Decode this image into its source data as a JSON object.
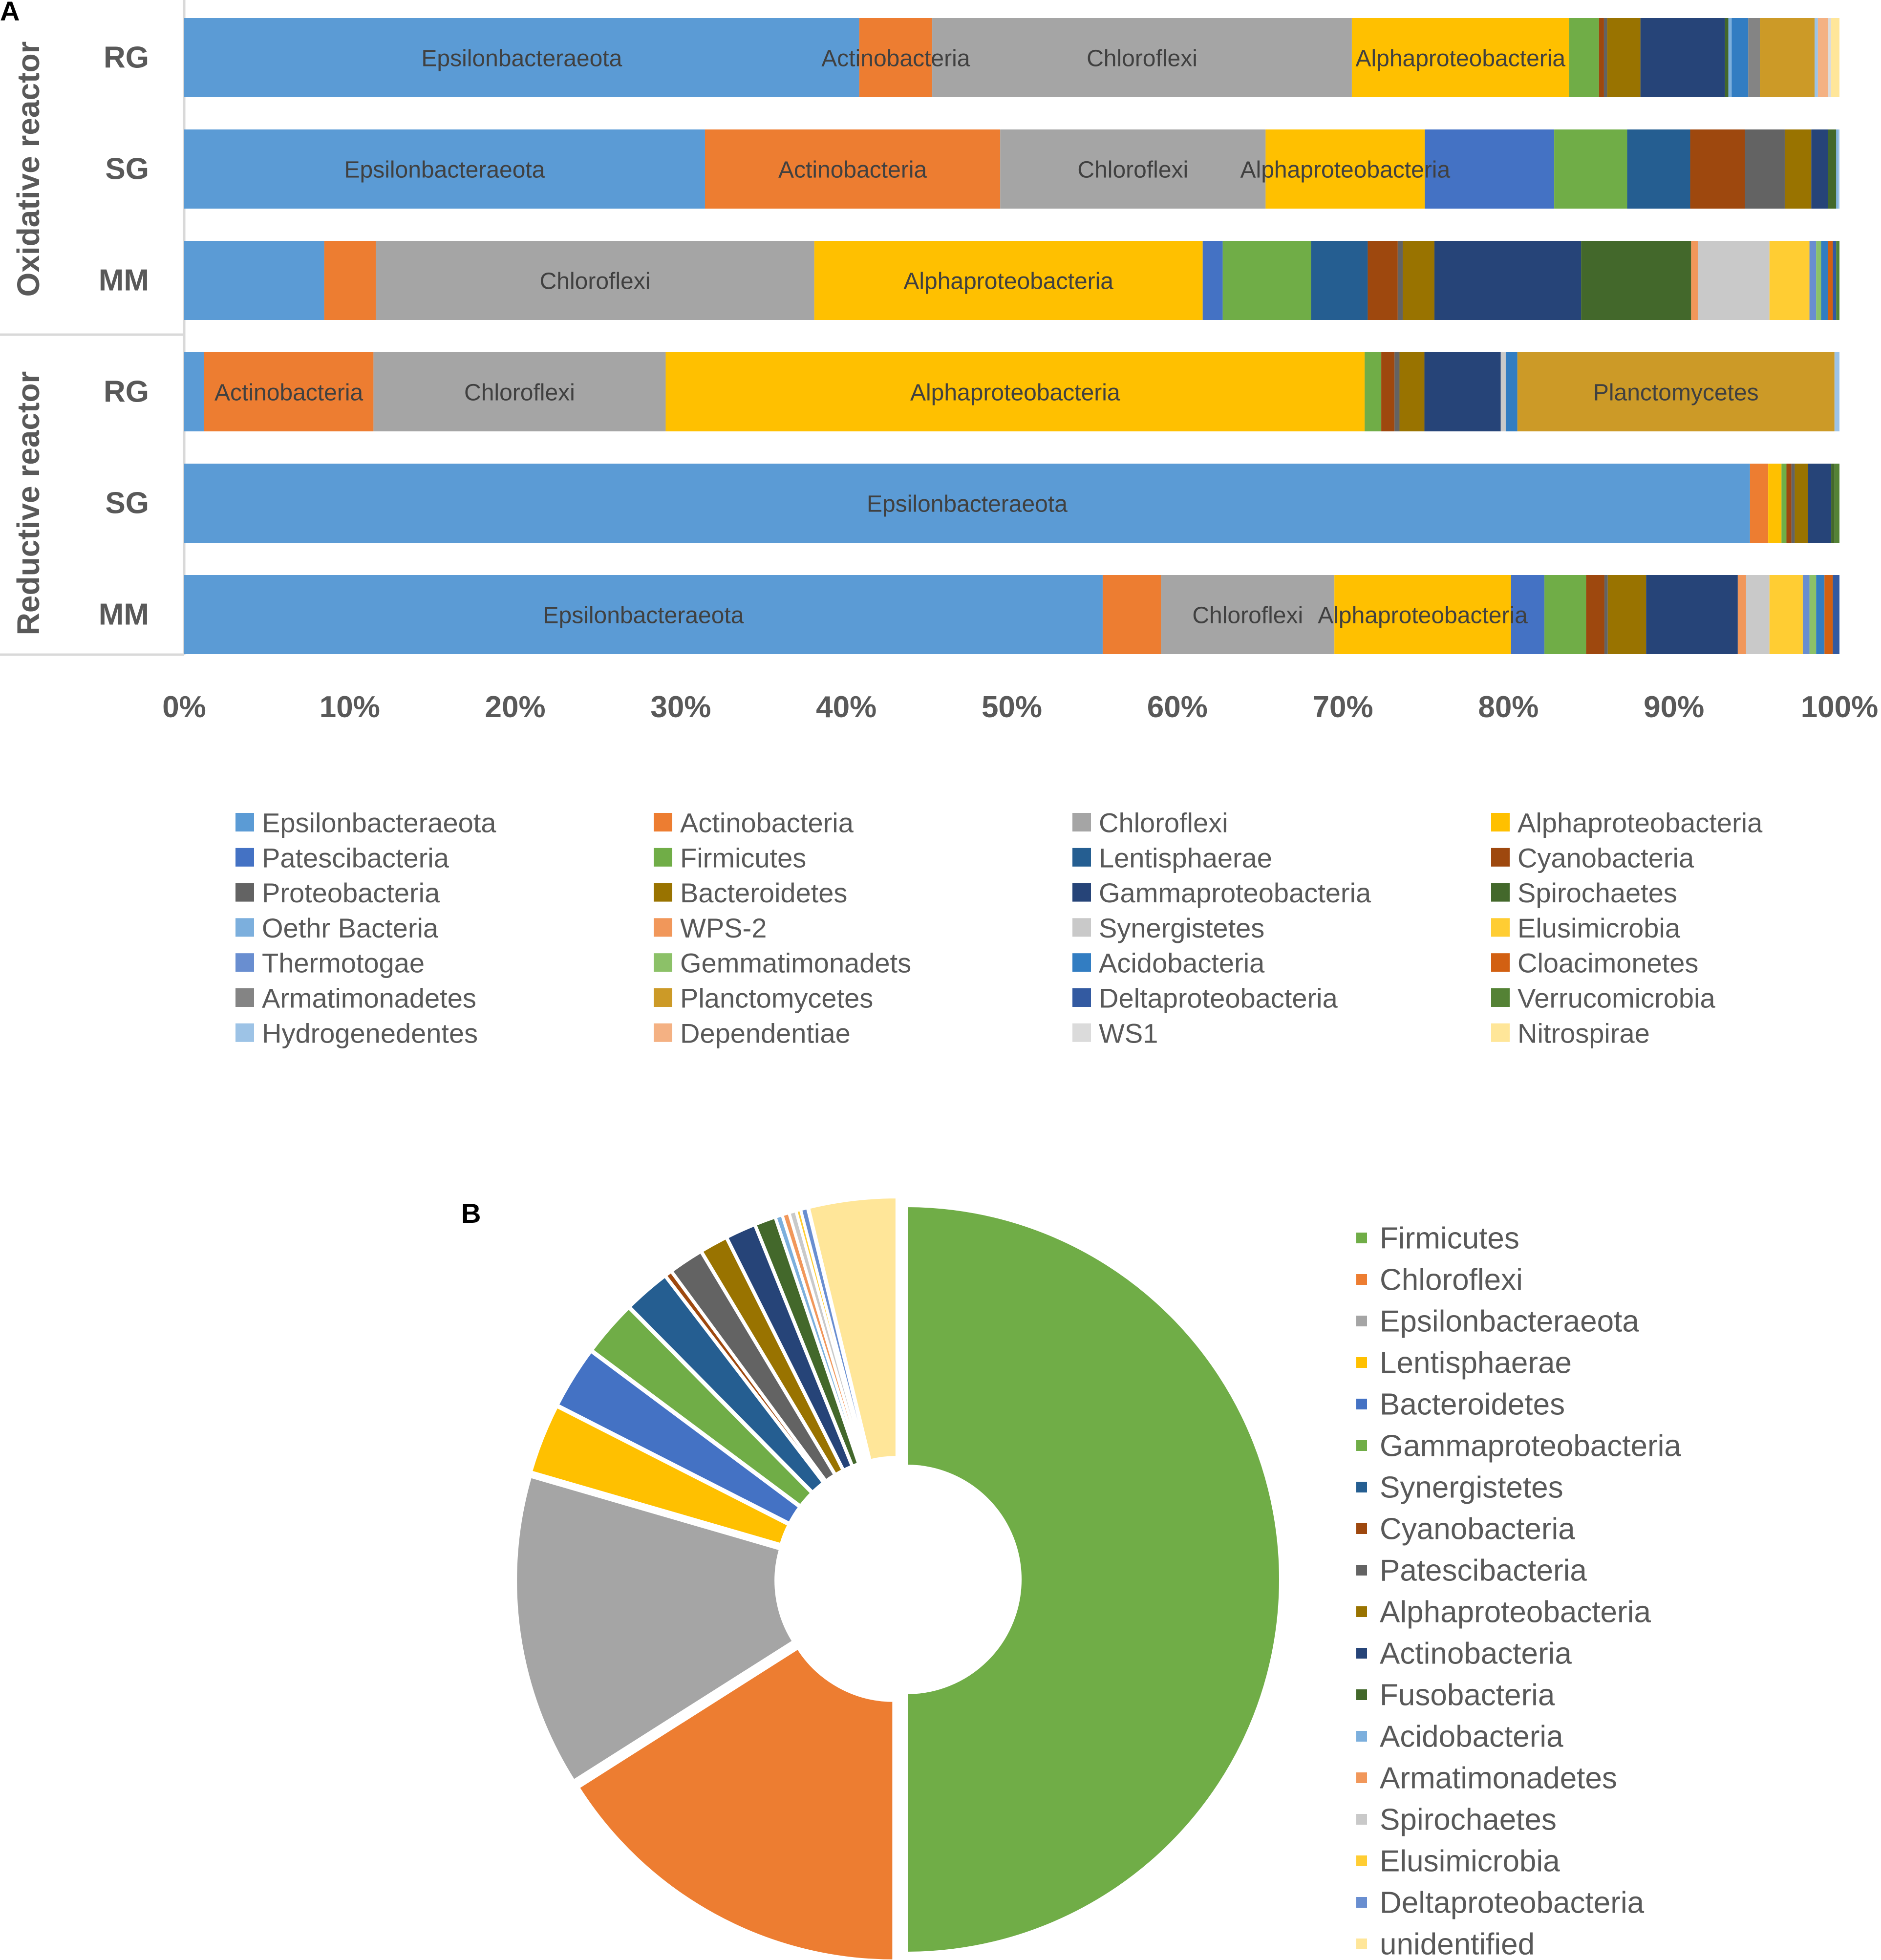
{
  "panel_labels": {
    "a": "A",
    "b": "B"
  },
  "chart_data": [
    {
      "type": "bar",
      "stacked": true,
      "orientation": "horizontal",
      "normalized": true,
      "panel": "A",
      "categories": [
        "RG",
        "SG",
        "MM",
        "RG",
        "SG",
        "MM"
      ],
      "groups": [
        {
          "label": "Oxidative reactor",
          "categories": [
            "RG",
            "SG",
            "MM"
          ]
        },
        {
          "label": "Reductive reactor",
          "categories": [
            "RG",
            "SG",
            "MM"
          ]
        }
      ],
      "xlim": [
        0,
        100
      ],
      "ticks": [
        "0%",
        "10%",
        "20%",
        "30%",
        "40%",
        "50%",
        "60%",
        "70%",
        "80%",
        "90%",
        "100%"
      ],
      "legend_position": "bottom",
      "legend_columns": 4,
      "series": [
        {
          "name": "Epsilonbacteraeota",
          "color": "#5B9BD5",
          "values": [
            40.7,
            31.4,
            8.4,
            1.2,
            94.5,
            55.1
          ]
        },
        {
          "name": "Actinobacteria",
          "color": "#ED7D31",
          "values": [
            4.4,
            17.8,
            3.1,
            10.2,
            1.1,
            3.5
          ]
        },
        {
          "name": "Chloroflexi",
          "color": "#A5A5A5",
          "values": [
            25.3,
            16.0,
            26.3,
            17.6,
            0.0,
            10.4
          ]
        },
        {
          "name": "Alphaproteobacteria",
          "color": "#FFC000",
          "values": [
            13.1,
            9.6,
            23.3,
            42.1,
            0.8,
            10.6
          ]
        },
        {
          "name": "Patescibacteria",
          "color": "#4472C4",
          "values": [
            0.0,
            7.8,
            1.2,
            0.0,
            0.0,
            2.0
          ]
        },
        {
          "name": "Firmicutes",
          "color": "#70AD47",
          "values": [
            1.8,
            4.4,
            5.3,
            1.0,
            0.3,
            2.5
          ]
        },
        {
          "name": "Lentisphaerae",
          "color": "#255E91",
          "values": [
            0.0,
            3.8,
            3.4,
            0.0,
            0.0,
            0.0
          ]
        },
        {
          "name": "Cyanobacteria",
          "color": "#9E480E",
          "values": [
            0.3,
            3.3,
            1.8,
            0.8,
            0.3,
            1.1
          ]
        },
        {
          "name": "Proteobacteria",
          "color": "#636363",
          "values": [
            0.2,
            2.4,
            0.3,
            0.3,
            0.2,
            0.2
          ]
        },
        {
          "name": "Bacteroidetes",
          "color": "#997300",
          "values": [
            2.0,
            1.6,
            1.9,
            1.5,
            0.8,
            2.3
          ]
        },
        {
          "name": "Gammaproteobacteria",
          "color": "#264478",
          "values": [
            5.1,
            1.0,
            8.8,
            4.6,
            1.4,
            5.5
          ]
        },
        {
          "name": "Spirochaetes",
          "color": "#43682B",
          "values": [
            0.2,
            0.5,
            6.6,
            0.0,
            0.2,
            0.0
          ]
        },
        {
          "name": "Oethr Bacteria",
          "color": "#7CAFDD",
          "values": [
            0.2,
            0.1,
            0.0,
            0.0,
            0.0,
            0.0
          ]
        },
        {
          "name": "WPS-2",
          "color": "#F1975A",
          "values": [
            0.0,
            0.0,
            0.4,
            0.0,
            0.0,
            0.5
          ]
        },
        {
          "name": "Synergistetes",
          "color": "#C9C9C9",
          "values": [
            0.0,
            0.0,
            4.3,
            0.3,
            0.0,
            1.4
          ]
        },
        {
          "name": "Elusimicrobia",
          "color": "#FFCD33",
          "values": [
            0.0,
            0.0,
            2.4,
            0.0,
            0.0,
            2.0
          ]
        },
        {
          "name": "Thermotogae",
          "color": "#698ED0",
          "values": [
            0.0,
            0.0,
            0.4,
            0.0,
            0.0,
            0.4
          ]
        },
        {
          "name": "Gemmatimonadets",
          "color": "#8CC168",
          "values": [
            0.0,
            0.0,
            0.3,
            0.0,
            0.0,
            0.4
          ]
        },
        {
          "name": "Acidobacteria",
          "color": "#327DC2",
          "values": [
            1.0,
            0.0,
            0.4,
            0.7,
            0.0,
            0.5
          ]
        },
        {
          "name": "Cloacimonetes",
          "color": "#D26012",
          "values": [
            0.0,
            0.0,
            0.3,
            0.0,
            0.0,
            0.5
          ]
        },
        {
          "name": "Armatimonadetes",
          "color": "#848484",
          "values": [
            0.7,
            0.0,
            0.0,
            0.0,
            0.0,
            0.0
          ]
        },
        {
          "name": "Planctomycetes",
          "color": "#CC9A27",
          "values": [
            3.3,
            0.0,
            0.0,
            19.1,
            0.0,
            0.0
          ]
        },
        {
          "name": "Deltaproteobacteria",
          "color": "#335AA1",
          "values": [
            0.0,
            0.0,
            0.2,
            0.0,
            0.0,
            0.4
          ]
        },
        {
          "name": "Verrucomicrobia",
          "color": "#548235",
          "values": [
            0.0,
            0.0,
            0.2,
            0.0,
            0.3,
            0.0
          ]
        },
        {
          "name": "Hydrogenedentes",
          "color": "#9DC3E6",
          "values": [
            0.2,
            0.1,
            0.0,
            0.3,
            0.0,
            0.0
          ]
        },
        {
          "name": "Dependentiae",
          "color": "#F4B183",
          "values": [
            0.6,
            0.0,
            0.0,
            0.0,
            0.0,
            0.0
          ]
        },
        {
          "name": "WS1",
          "color": "#DBDBDB",
          "values": [
            0.2,
            0.0,
            0.0,
            0.0,
            0.0,
            0.0
          ]
        },
        {
          "name": "Nitrospirae",
          "color": "#FFE699",
          "values": [
            0.5,
            0.0,
            0.0,
            0.0,
            0.0,
            0.0
          ]
        }
      ],
      "segment_labels": [
        {
          "bar": 0,
          "series": "Epsilonbacteraeota",
          "text": "Epsilonbacteraeota"
        },
        {
          "bar": 0,
          "series": "Actinobacteria",
          "text": "Actinobacteria"
        },
        {
          "bar": 0,
          "series": "Chloroflexi",
          "text": "Chloroflexi"
        },
        {
          "bar": 0,
          "series": "Alphaproteobacteria",
          "text": "Alphaproteobacteria"
        },
        {
          "bar": 1,
          "series": "Epsilonbacteraeota",
          "text": "Epsilonbacteraeota"
        },
        {
          "bar": 1,
          "series": "Actinobacteria",
          "text": "Actinobacteria"
        },
        {
          "bar": 1,
          "series": "Chloroflexi",
          "text": "Chloroflexi"
        },
        {
          "bar": 1,
          "series": "Alphaproteobacteria",
          "text": "Alphaproteobacteria"
        },
        {
          "bar": 2,
          "series": "Chloroflexi",
          "text": "Chloroflexi"
        },
        {
          "bar": 2,
          "series": "Alphaproteobacteria",
          "text": "Alphaproteobacteria"
        },
        {
          "bar": 3,
          "series": "Actinobacteria",
          "text": "Actinobacteria"
        },
        {
          "bar": 3,
          "series": "Chloroflexi",
          "text": "Chloroflexi"
        },
        {
          "bar": 3,
          "series": "Alphaproteobacteria",
          "text": "Alphaproteobacteria"
        },
        {
          "bar": 3,
          "series": "Planctomycetes",
          "text": "Planctomycetes"
        },
        {
          "bar": 4,
          "series": "Epsilonbacteraeota",
          "text": "Epsilonbacteraeota"
        },
        {
          "bar": 5,
          "series": "Epsilonbacteraeota",
          "text": "Epsilonbacteraeota"
        },
        {
          "bar": 5,
          "series": "Chloroflexi",
          "text": "Chloroflexi"
        },
        {
          "bar": 5,
          "series": "Alphaproteobacteria",
          "text": "Alphaproteobacteria"
        }
      ]
    },
    {
      "type": "pie",
      "donut": true,
      "panel": "B",
      "legend_position": "right",
      "slices": [
        {
          "name": "Firmicutes",
          "value": 50.0,
          "color": "#70AD47"
        },
        {
          "name": "Chloroflexi",
          "value": 16.0,
          "color": "#ED7D31"
        },
        {
          "name": "Epsilonbacteraeota",
          "value": 13.5,
          "color": "#A5A5A5"
        },
        {
          "name": "Lentisphaerae",
          "value": 3.0,
          "color": "#FFC000"
        },
        {
          "name": "Bacteroidetes",
          "value": 2.7,
          "color": "#4472C4"
        },
        {
          "name": "Gammaproteobacteria",
          "value": 2.4,
          "color": "#70AD47"
        },
        {
          "name": "Synergistetes",
          "value": 2.0,
          "color": "#255E91"
        },
        {
          "name": "Cyanobacteria",
          "value": 0.3,
          "color": "#9E480E"
        },
        {
          "name": "Patescibacteria",
          "value": 1.5,
          "color": "#636363"
        },
        {
          "name": "Alphaproteobacteria",
          "value": 1.2,
          "color": "#997300"
        },
        {
          "name": "Actinobacteria",
          "value": 1.3,
          "color": "#264478"
        },
        {
          "name": "Fusobacteria",
          "value": 0.9,
          "color": "#43682B"
        },
        {
          "name": "Acidobacteria",
          "value": 0.3,
          "color": "#7CAFDD"
        },
        {
          "name": "Armatimonadetes",
          "value": 0.3,
          "color": "#F1975A"
        },
        {
          "name": "Spirochaetes",
          "value": 0.3,
          "color": "#C9C9C9"
        },
        {
          "name": "Elusimicrobia",
          "value": 0.2,
          "color": "#FFCD33"
        },
        {
          "name": "Deltaproteobacteria",
          "value": 0.3,
          "color": "#698ED0"
        },
        {
          "name": "unidentified",
          "value": 3.8,
          "color": "#FFE699"
        }
      ]
    }
  ]
}
